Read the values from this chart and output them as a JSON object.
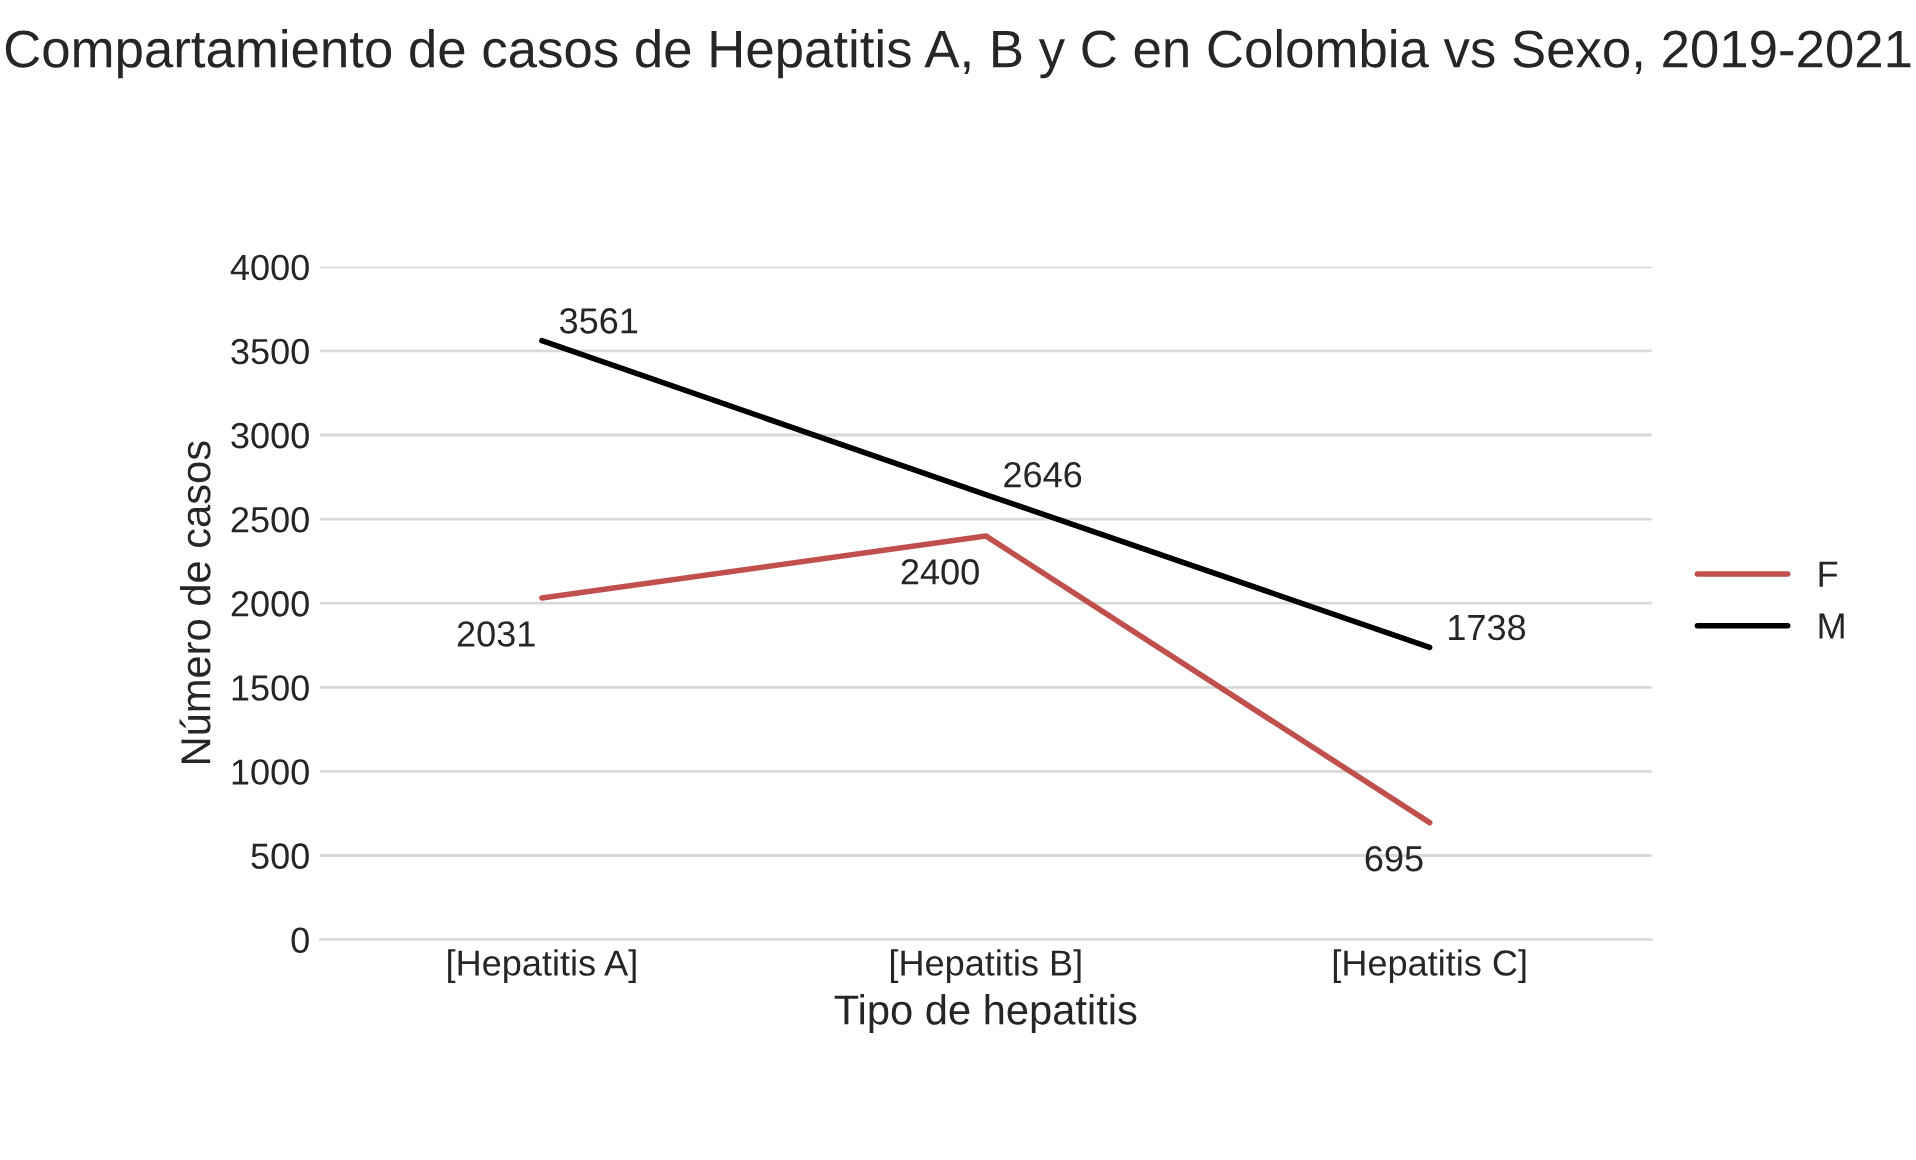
{
  "chart_data": {
    "type": "line",
    "title": "Compartamiento de casos de Hepatitis A, B y C en Colombia vs Sexo, 2019-2021",
    "xlabel": "Tipo de hepatitis",
    "ylabel": "Número de casos",
    "categories": [
      "[Hepatitis A]",
      "[Hepatitis B]",
      "[Hepatitis C]"
    ],
    "series": [
      {
        "name": "F",
        "color": "#c0504d",
        "values": [
          2031,
          2400,
          695
        ]
      },
      {
        "name": "M",
        "color": "#000000",
        "values": [
          3561,
          2646,
          1738
        ]
      }
    ],
    "ylim": [
      0,
      4000
    ],
    "yticks": [
      0,
      500,
      1000,
      1500,
      2000,
      2500,
      3000,
      3500,
      4000
    ],
    "grid": "y",
    "legend": "right",
    "data_labels": true,
    "marker": "none",
    "line_style": "solid"
  }
}
